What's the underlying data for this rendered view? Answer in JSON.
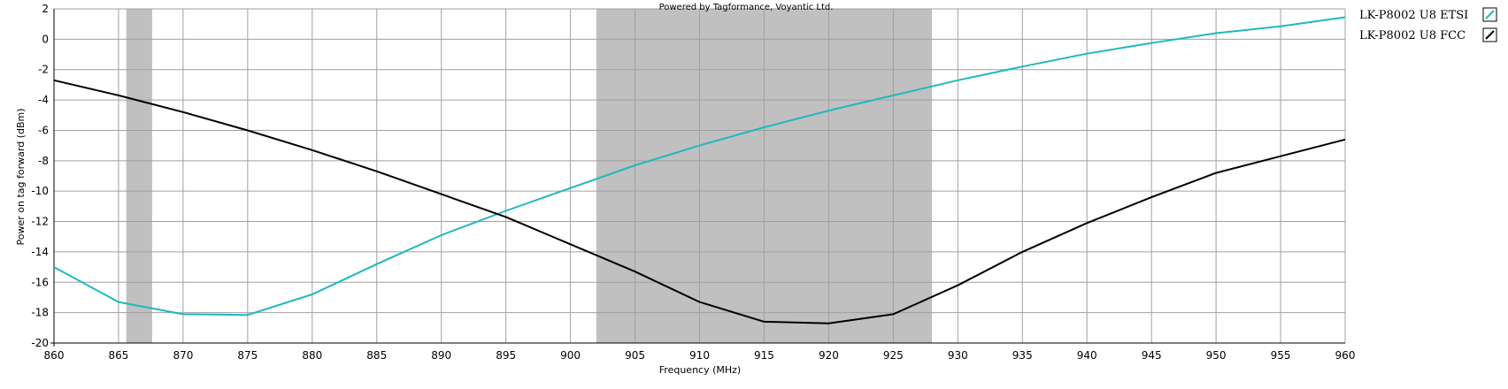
{
  "chart_data": {
    "type": "line",
    "credit": "Powered by Tagformance, Voyantic Ltd.",
    "xlabel": "Frequency (MHz)",
    "ylabel": "Power on tag forward (dBm)",
    "xlim": [
      860,
      960
    ],
    "ylim": [
      -20,
      2
    ],
    "x_ticks": [
      860,
      865,
      870,
      875,
      880,
      885,
      890,
      895,
      900,
      905,
      910,
      915,
      920,
      925,
      930,
      935,
      940,
      945,
      950,
      955,
      960
    ],
    "y_ticks": [
      2,
      0,
      -2,
      -4,
      -6,
      -8,
      -10,
      -12,
      -14,
      -16,
      -18,
      -20
    ],
    "grid": true,
    "legend_position": "right",
    "shaded_bands": [
      {
        "from": 865.6,
        "to": 867.6,
        "color": "#c0c0c0"
      },
      {
        "from": 902,
        "to": 928,
        "color": "#c0c0c0"
      }
    ],
    "series": [
      {
        "name": "LK-P8002 U8 ETSI",
        "color": "#1fb8be",
        "x": [
          860,
          865,
          870,
          875,
          880,
          885,
          890,
          895,
          900,
          905,
          910,
          915,
          920,
          925,
          930,
          935,
          940,
          945,
          950,
          955,
          960
        ],
        "values": [
          -15.0,
          -17.3,
          -18.1,
          -18.15,
          -16.8,
          -14.8,
          -12.9,
          -11.3,
          -9.8,
          -8.3,
          -7.0,
          -5.8,
          -4.7,
          -3.7,
          -2.7,
          -1.8,
          -0.95,
          -0.25,
          0.4,
          0.85,
          1.45
        ]
      },
      {
        "name": "LK-P8002 U8 FCC",
        "color": "#000000",
        "x": [
          860,
          865,
          870,
          875,
          880,
          885,
          890,
          895,
          900,
          905,
          910,
          915,
          920,
          925,
          930,
          935,
          940,
          945,
          950,
          955,
          960
        ],
        "values": [
          -2.7,
          -3.7,
          -4.8,
          -6.0,
          -7.3,
          -8.7,
          -10.2,
          -11.7,
          -13.5,
          -15.3,
          -17.3,
          -18.6,
          -18.7,
          -18.1,
          -16.2,
          -14.0,
          -12.1,
          -10.4,
          -8.8,
          -7.7,
          -6.6
        ]
      }
    ]
  }
}
